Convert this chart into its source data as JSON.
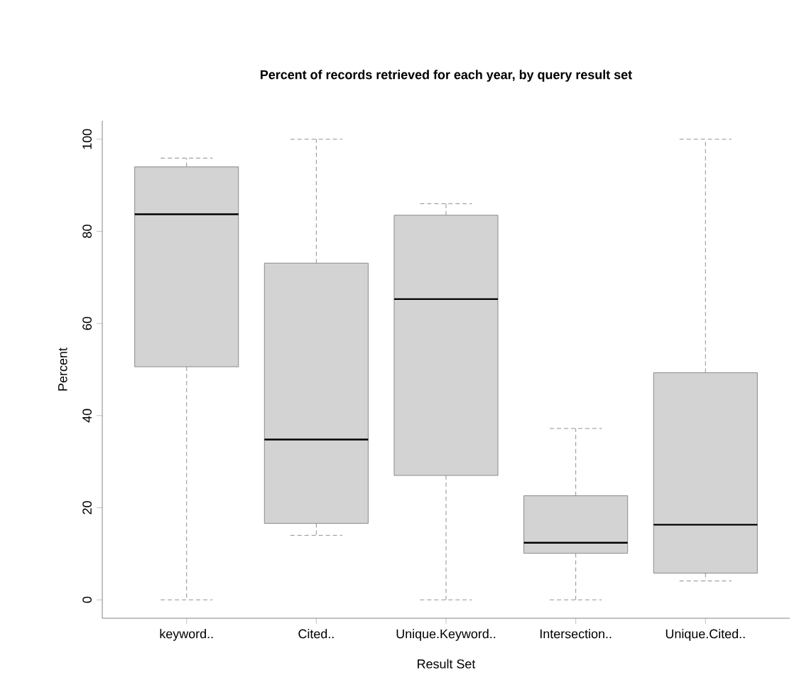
{
  "chart_data": {
    "type": "box",
    "title": "Percent of records retrieved for each year, by query result set",
    "xlabel": "Result Set",
    "ylabel": "Percent",
    "categories": [
      "keyword..",
      "Cited..",
      "Unique.Keyword..",
      "Intersection..",
      "Unique.Cited.."
    ],
    "boxes": [
      {
        "low": 0,
        "q1": 50.6,
        "median": 83.7,
        "q3": 94.0,
        "high": 95.9
      },
      {
        "low": 14.0,
        "q1": 16.6,
        "median": 34.8,
        "q3": 73.1,
        "high": 100
      },
      {
        "low": 0,
        "q1": 27.0,
        "median": 65.3,
        "q3": 83.5,
        "high": 86.0
      },
      {
        "low": 0,
        "q1": 10.1,
        "median": 12.4,
        "q3": 22.6,
        "high": 37.2
      },
      {
        "low": 4.1,
        "q1": 5.8,
        "median": 16.3,
        "q3": 49.3,
        "high": 100
      }
    ],
    "color": "#d3d3d3",
    "ylim": [
      -4,
      104
    ],
    "yticks": [
      0,
      20,
      40,
      60,
      80,
      100
    ]
  }
}
